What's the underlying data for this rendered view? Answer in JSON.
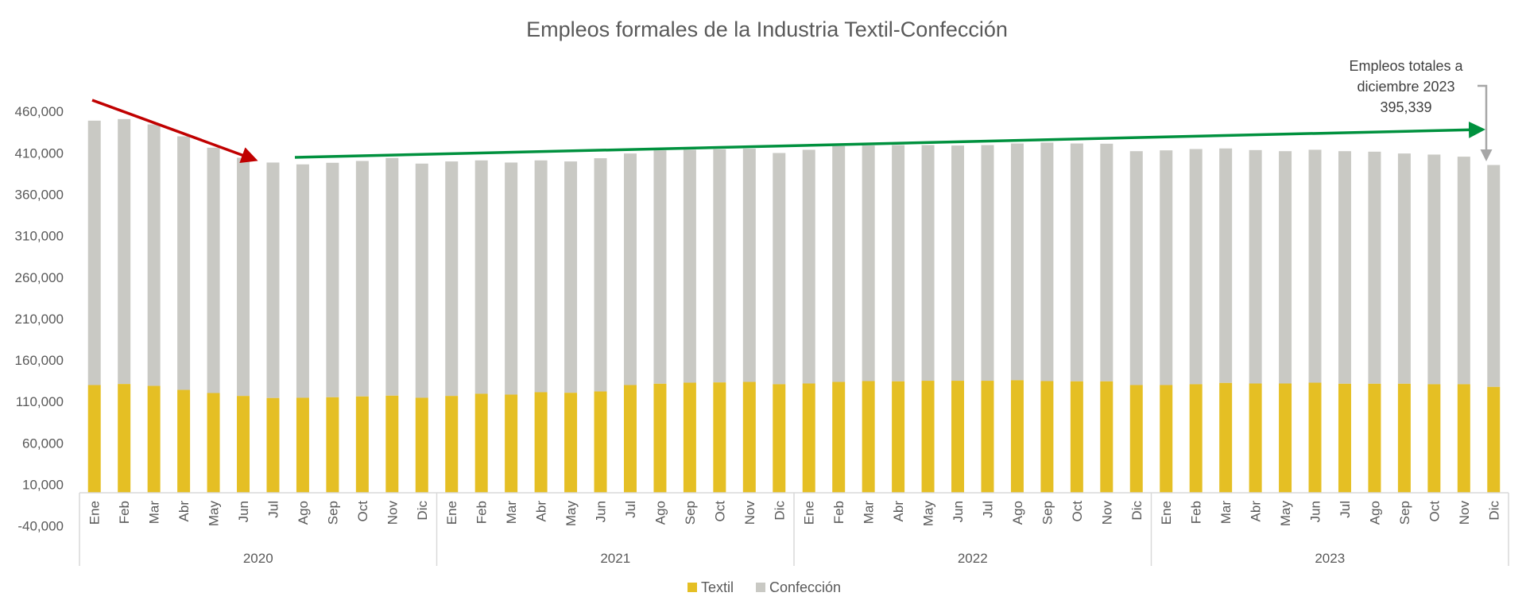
{
  "chart_data": {
    "type": "bar",
    "stacked": true,
    "title": "Empleos formales de la Industria Textil-Confección",
    "xlabel": "",
    "ylabel": "",
    "ylim": [
      -40000,
      480000
    ],
    "yticks": [
      -40000,
      10000,
      60000,
      110000,
      160000,
      210000,
      260000,
      310000,
      360000,
      410000,
      460000
    ],
    "ytick_labels": [
      "-40,000",
      "10,000",
      "60,000",
      "110,000",
      "160,000",
      "210,000",
      "260,000",
      "310,000",
      "360,000",
      "410,000",
      "460,000"
    ],
    "grid": false,
    "years": [
      "2020",
      "2021",
      "2022",
      "2023"
    ],
    "months": [
      "Ene",
      "Feb",
      "Mar",
      "Abr",
      "May",
      "Jun",
      "Jul",
      "Ago",
      "Sep",
      "Oct",
      "Nov",
      "Dic"
    ],
    "legend_position": "bottom",
    "series": [
      {
        "name": "Textil",
        "color": "#E5BF24",
        "values": [
          129900,
          131200,
          128900,
          124100,
          120300,
          116800,
          114300,
          114600,
          115200,
          116200,
          117100,
          114600,
          116800,
          119400,
          118400,
          121300,
          120600,
          122200,
          129900,
          131500,
          132800,
          133100,
          133700,
          130900,
          131800,
          133700,
          134700,
          134400,
          135100,
          135100,
          135100,
          135700,
          134700,
          134400,
          134400,
          129900,
          129900,
          130900,
          132500,
          131800,
          131800,
          132800,
          131500,
          131500,
          131500,
          130900,
          130900,
          127700
        ]
      },
      {
        "name": "Confección",
        "color": "#C9C9C4",
        "totals": [
          448800,
          450700,
          444300,
          429900,
          416200,
          404100,
          398300,
          396100,
          398000,
          400200,
          403800,
          397000,
          399600,
          400900,
          398300,
          400900,
          399600,
          403500,
          409200,
          413000,
          413700,
          414300,
          415000,
          409800,
          413700,
          418100,
          418800,
          419400,
          419400,
          418800,
          419400,
          421300,
          422300,
          421300,
          421000,
          412000,
          413000,
          414600,
          415300,
          413300,
          412000,
          413700,
          412000,
          411400,
          409200,
          407900,
          405400,
          395339
        ]
      }
    ],
    "annotations": {
      "total_label_line1": "Empleos totales a",
      "total_label_line2": "diciembre 2023",
      "total_value": "395,339",
      "arrow_decline_color": "#C00000",
      "arrow_growth_color": "#00913E"
    }
  }
}
